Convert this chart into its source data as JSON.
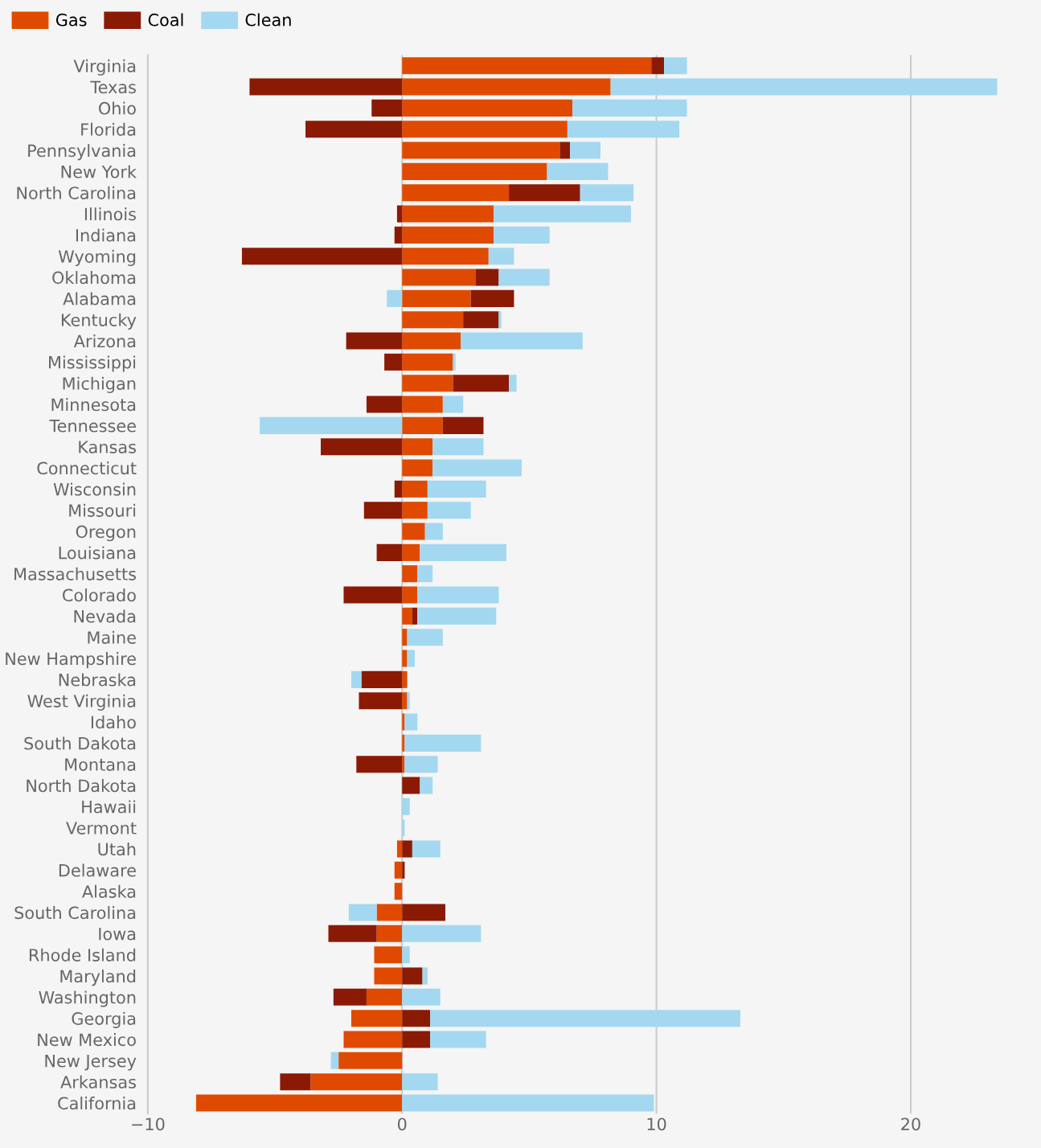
{
  "chart_data": {
    "type": "bar",
    "orientation": "horizontal",
    "stacked": true,
    "categories": [
      "Virginia",
      "Texas",
      "Ohio",
      "Florida",
      "Pennsylvania",
      "New York",
      "North Carolina",
      "Illinois",
      "Indiana",
      "Wyoming",
      "Oklahoma",
      "Alabama",
      "Kentucky",
      "Arizona",
      "Mississippi",
      "Michigan",
      "Minnesota",
      "Tennessee",
      "Kansas",
      "Connecticut",
      "Wisconsin",
      "Missouri",
      "Oregon",
      "Louisiana",
      "Massachusetts",
      "Colorado",
      "Nevada",
      "Maine",
      "New Hampshire",
      "Nebraska",
      "West Virginia",
      "Idaho",
      "South Dakota",
      "Montana",
      "North Dakota",
      "Hawaii",
      "Vermont",
      "Utah",
      "Delaware",
      "Alaska",
      "South Carolina",
      "Iowa",
      "Rhode Island",
      "Maryland",
      "Washington",
      "Georgia",
      "New Mexico",
      "New Jersey",
      "Arkansas",
      "California"
    ],
    "series": [
      {
        "name": "Gas",
        "color": "#e04a00",
        "values": [
          9.8,
          8.2,
          6.7,
          6.5,
          6.2,
          5.7,
          4.2,
          3.6,
          3.6,
          3.4,
          2.9,
          2.7,
          2.4,
          2.3,
          2.0,
          2.0,
          1.6,
          1.6,
          1.2,
          1.2,
          1.0,
          1.0,
          0.9,
          0.7,
          0.6,
          0.6,
          0.4,
          0.2,
          0.2,
          0.2,
          0.2,
          0.1,
          0.1,
          0.1,
          0.0,
          0.0,
          0.0,
          -0.2,
          -0.3,
          -0.3,
          -1.0,
          -1.0,
          -1.1,
          -1.1,
          -1.4,
          -2.0,
          -2.3,
          -2.5,
          -3.6,
          -8.1
        ]
      },
      {
        "name": "Coal",
        "color": "#8b1a05",
        "values": [
          0.5,
          -6.0,
          -1.2,
          -3.8,
          0.4,
          0.0,
          2.8,
          -0.2,
          -0.3,
          -6.3,
          0.9,
          1.7,
          1.4,
          -2.2,
          -0.7,
          2.2,
          -1.4,
          1.6,
          -3.2,
          0.0,
          -0.3,
          -1.5,
          0.0,
          -1.0,
          0.0,
          -2.3,
          0.2,
          0.0,
          0.0,
          -1.6,
          -1.7,
          0.0,
          0.0,
          -1.8,
          0.7,
          0.0,
          0.0,
          0.4,
          0.1,
          0.0,
          1.7,
          -1.9,
          0.0,
          0.8,
          -1.3,
          1.1,
          1.1,
          0.0,
          -1.2,
          0.0
        ]
      },
      {
        "name": "Clean",
        "color": "#a3d8f0",
        "values": [
          0.9,
          15.2,
          4.5,
          4.4,
          1.2,
          2.4,
          2.1,
          5.4,
          2.2,
          1.0,
          2.0,
          -0.6,
          0.1,
          4.8,
          0.1,
          0.3,
          0.8,
          -5.6,
          2.0,
          3.5,
          2.3,
          1.7,
          0.7,
          3.4,
          0.6,
          3.2,
          3.1,
          1.4,
          0.3,
          -0.4,
          0.1,
          0.5,
          3.0,
          1.3,
          0.5,
          0.3,
          0.1,
          1.1,
          0.0,
          0.0,
          -1.1,
          3.1,
          0.3,
          0.2,
          1.5,
          12.2,
          2.2,
          -0.3,
          1.4,
          9.9
        ]
      }
    ],
    "xlim": [
      -10,
      25
    ],
    "xticks": [
      {
        "value": -10,
        "label": "−10"
      },
      0,
      10,
      20
    ],
    "grid": "x",
    "legend": "top left"
  }
}
